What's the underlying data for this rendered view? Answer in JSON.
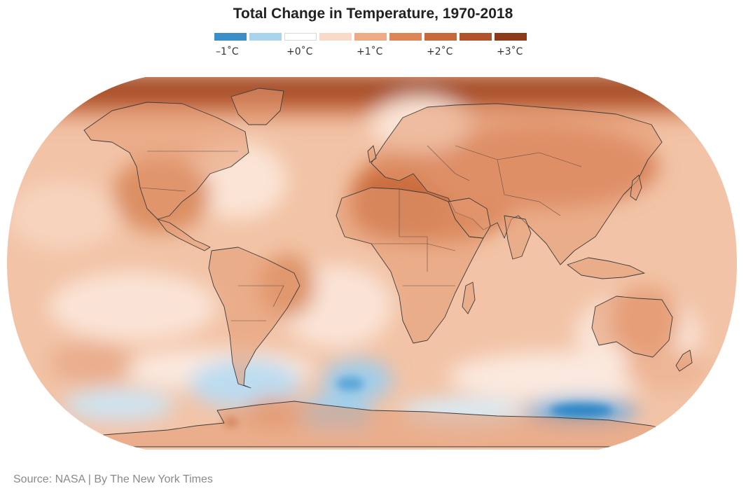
{
  "title": "Total Change in Temperature, 1970-2018",
  "legend": {
    "colors": [
      "#3b8fc9",
      "#a9d4ee",
      "#ffffff",
      "#f9d9c7",
      "#eeaa85",
      "#dd8556",
      "#c9693a",
      "#b1522a",
      "#8e3a1a"
    ],
    "labels": [
      "–1˚C",
      "+0˚C",
      "+1˚C",
      "+2˚C",
      "+3˚C"
    ]
  },
  "source": "Source: NASA | By The New York Times",
  "colors": {
    "ocean_base": "#f2c3a6",
    "land_base": "#e39a72",
    "arctic": "#9c4520",
    "cold": "#8cc2e6",
    "coldest": "#2f86c6",
    "neutral": "#fbe9df",
    "border": "#3c3c3c"
  }
}
